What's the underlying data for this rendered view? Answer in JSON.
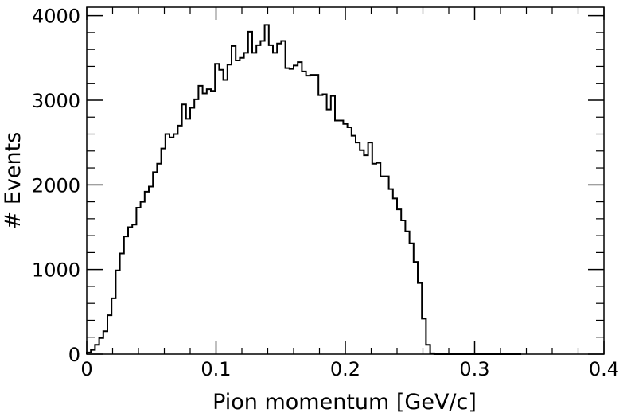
{
  "chart_data": {
    "type": "histogram",
    "title": "",
    "xlabel": "Pion momentum [GeV/c]",
    "ylabel": "# Events",
    "xlim": [
      0,
      0.4
    ],
    "ylim": [
      0,
      4100
    ],
    "x_ticks": [
      0,
      0.1,
      0.2,
      0.3,
      0.4
    ],
    "x_tick_labels": [
      "0",
      "0.1",
      "0.2",
      "0.3",
      "0.4"
    ],
    "y_ticks": [
      0,
      1000,
      2000,
      3000,
      4000
    ],
    "y_tick_labels": [
      "0",
      "1000",
      "2000",
      "3000",
      "4000"
    ],
    "grid": false,
    "line_color": "#000000",
    "bin_width": 0.0032,
    "bin_start": 0,
    "values": [
      20,
      50,
      110,
      190,
      270,
      460,
      660,
      990,
      1190,
      1390,
      1500,
      1530,
      1730,
      1800,
      1920,
      1980,
      2150,
      2250,
      2430,
      2600,
      2560,
      2600,
      2700,
      2950,
      2780,
      2910,
      3010,
      3170,
      3080,
      3130,
      3110,
      3430,
      3360,
      3240,
      3420,
      3640,
      3470,
      3500,
      3560,
      3810,
      3560,
      3650,
      3700,
      3890,
      3650,
      3560,
      3670,
      3700,
      3380,
      3370,
      3410,
      3450,
      3340,
      3290,
      3300,
      3300,
      3060,
      3070,
      2890,
      3050,
      2760,
      2760,
      2720,
      2680,
      2580,
      2500,
      2410,
      2350,
      2500,
      2250,
      2260,
      2100,
      2100,
      1950,
      1840,
      1710,
      1580,
      1450,
      1310,
      1090,
      840,
      420,
      110,
      10,
      0,
      0,
      0,
      0,
      0,
      0,
      0,
      0,
      0,
      0,
      0,
      0,
      0,
      0,
      0,
      0,
      0,
      0,
      0,
      0,
      0
    ]
  }
}
